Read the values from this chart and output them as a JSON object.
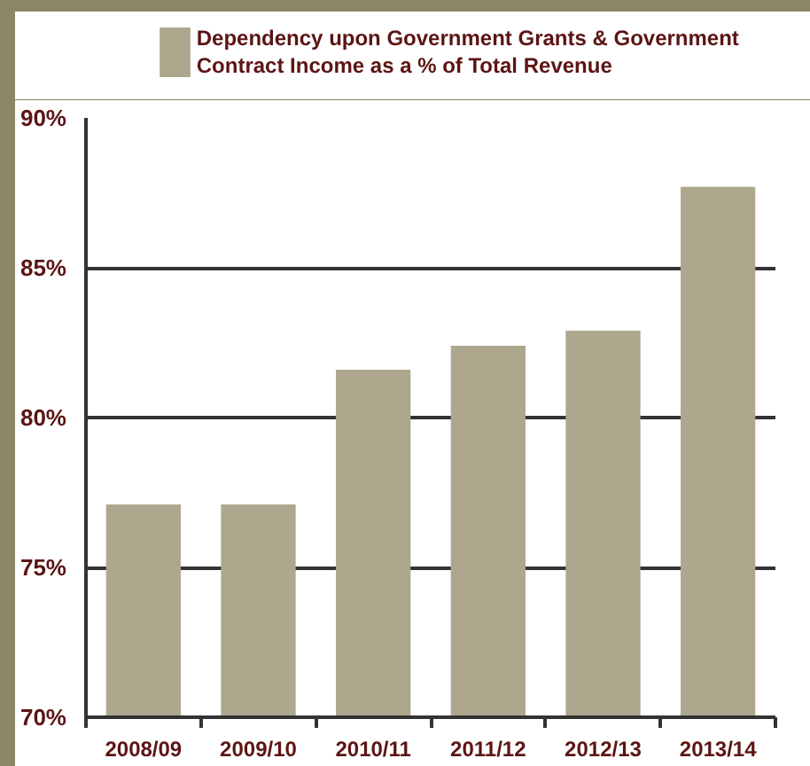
{
  "chart_data": {
    "type": "bar",
    "categories": [
      "2008/09",
      "2009/10",
      "2010/11",
      "2011/12",
      "2012/13",
      "2013/14"
    ],
    "series": [
      {
        "name": "Dependency upon Government Grants & Government Contract Income as a % of Total Revenue",
        "color": "#ada88d",
        "values": [
          77.1,
          77.1,
          81.6,
          82.4,
          82.9,
          87.7
        ]
      }
    ],
    "ylim": [
      70,
      90
    ],
    "yticks": [
      {
        "value": 70,
        "label": "70%"
      },
      {
        "value": 75,
        "label": "75%"
      },
      {
        "value": 80,
        "label": "80%"
      },
      {
        "value": 85,
        "label": "85%"
      },
      {
        "value": 90,
        "label": "90%"
      }
    ],
    "grid": "y",
    "legend": "top"
  }
}
